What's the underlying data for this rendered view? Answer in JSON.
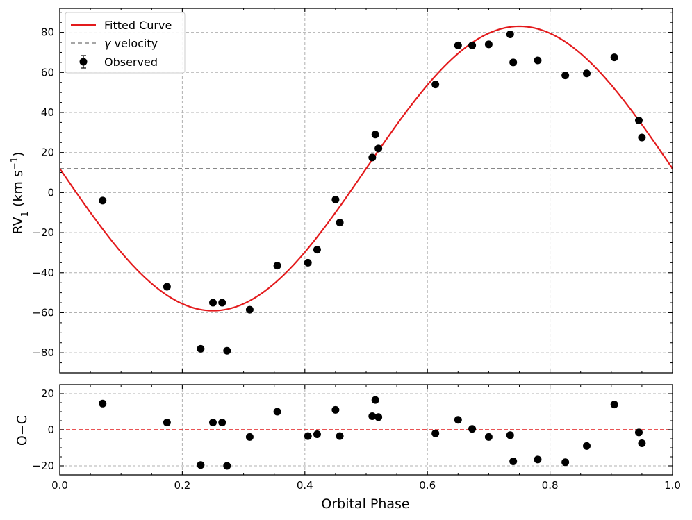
{
  "chart_data": [
    {
      "panel": "main",
      "type": "scatter",
      "xlabel": "Orbital Phase",
      "ylabel_parts": {
        "base": "RV",
        "sub": "1",
        "unit": "(km s",
        "sup": "−1",
        "close": ")"
      },
      "xlim": [
        0.0,
        1.0
      ],
      "ylim": [
        -90,
        92
      ],
      "xticks": [
        0.0,
        0.2,
        0.4,
        0.6,
        0.8,
        1.0
      ],
      "xtick_labels": [
        "0.0",
        "0.2",
        "0.4",
        "0.6",
        "0.8",
        "1.0"
      ],
      "yticks": [
        -80,
        -60,
        -40,
        -20,
        0,
        20,
        40,
        60,
        80
      ],
      "ytick_labels": [
        "−80",
        "−60",
        "−40",
        "−20",
        "0",
        "20",
        "40",
        "60",
        "80"
      ],
      "grid": true,
      "legend_position": "top-left",
      "legend": [
        {
          "label": "Fitted Curve",
          "style": "line",
          "color": "#e31a1c"
        },
        {
          "label_pre": "γ",
          "label_post": " velocity",
          "style": "dashed",
          "color": "#888888"
        },
        {
          "label": "Observed",
          "style": "marker-errorbar",
          "color": "#000000"
        }
      ],
      "fit": {
        "gamma": 12,
        "amplitude": 71,
        "function": "gamma - K*sin(2*pi*phase)",
        "color": "#e31a1c"
      },
      "gamma_velocity": 12,
      "observed": {
        "x": [
          0.07,
          0.175,
          0.23,
          0.25,
          0.265,
          0.273,
          0.31,
          0.355,
          0.405,
          0.42,
          0.45,
          0.457,
          0.51,
          0.515,
          0.52,
          0.613,
          0.65,
          0.673,
          0.7,
          0.735,
          0.74,
          0.78,
          0.825,
          0.86,
          0.905,
          0.945,
          0.95
        ],
        "y": [
          -4,
          -47,
          -78,
          -55,
          -55,
          -79,
          -58.5,
          -36.5,
          -35,
          -28.5,
          -3.5,
          -15,
          17.5,
          29,
          22,
          54,
          73.5,
          73.5,
          74,
          79,
          65,
          66,
          58.5,
          59.5,
          67.5,
          36,
          27.5
        ]
      }
    },
    {
      "panel": "residual",
      "type": "scatter",
      "ylabel": "O−C",
      "xlim": [
        0.0,
        1.0
      ],
      "ylim": [
        -25,
        25
      ],
      "yticks": [
        -20,
        0,
        20
      ],
      "ytick_labels": [
        "−20",
        "0",
        "20"
      ],
      "zero_line_color": "#e31a1c",
      "residuals": {
        "x": [
          0.07,
          0.175,
          0.23,
          0.25,
          0.265,
          0.273,
          0.31,
          0.355,
          0.405,
          0.42,
          0.45,
          0.457,
          0.51,
          0.515,
          0.52,
          0.613,
          0.65,
          0.673,
          0.7,
          0.735,
          0.74,
          0.78,
          0.825,
          0.86,
          0.905,
          0.945,
          0.95
        ],
        "y": [
          14.5,
          4,
          -19.5,
          4,
          4,
          -20,
          -4,
          10,
          -3.5,
          -2.5,
          11,
          -3.5,
          7.5,
          16.5,
          7,
          -2,
          5.5,
          0.5,
          -4,
          -3,
          -17.5,
          -16.5,
          -18,
          -9,
          14,
          -1.5,
          -7.5
        ]
      }
    }
  ]
}
